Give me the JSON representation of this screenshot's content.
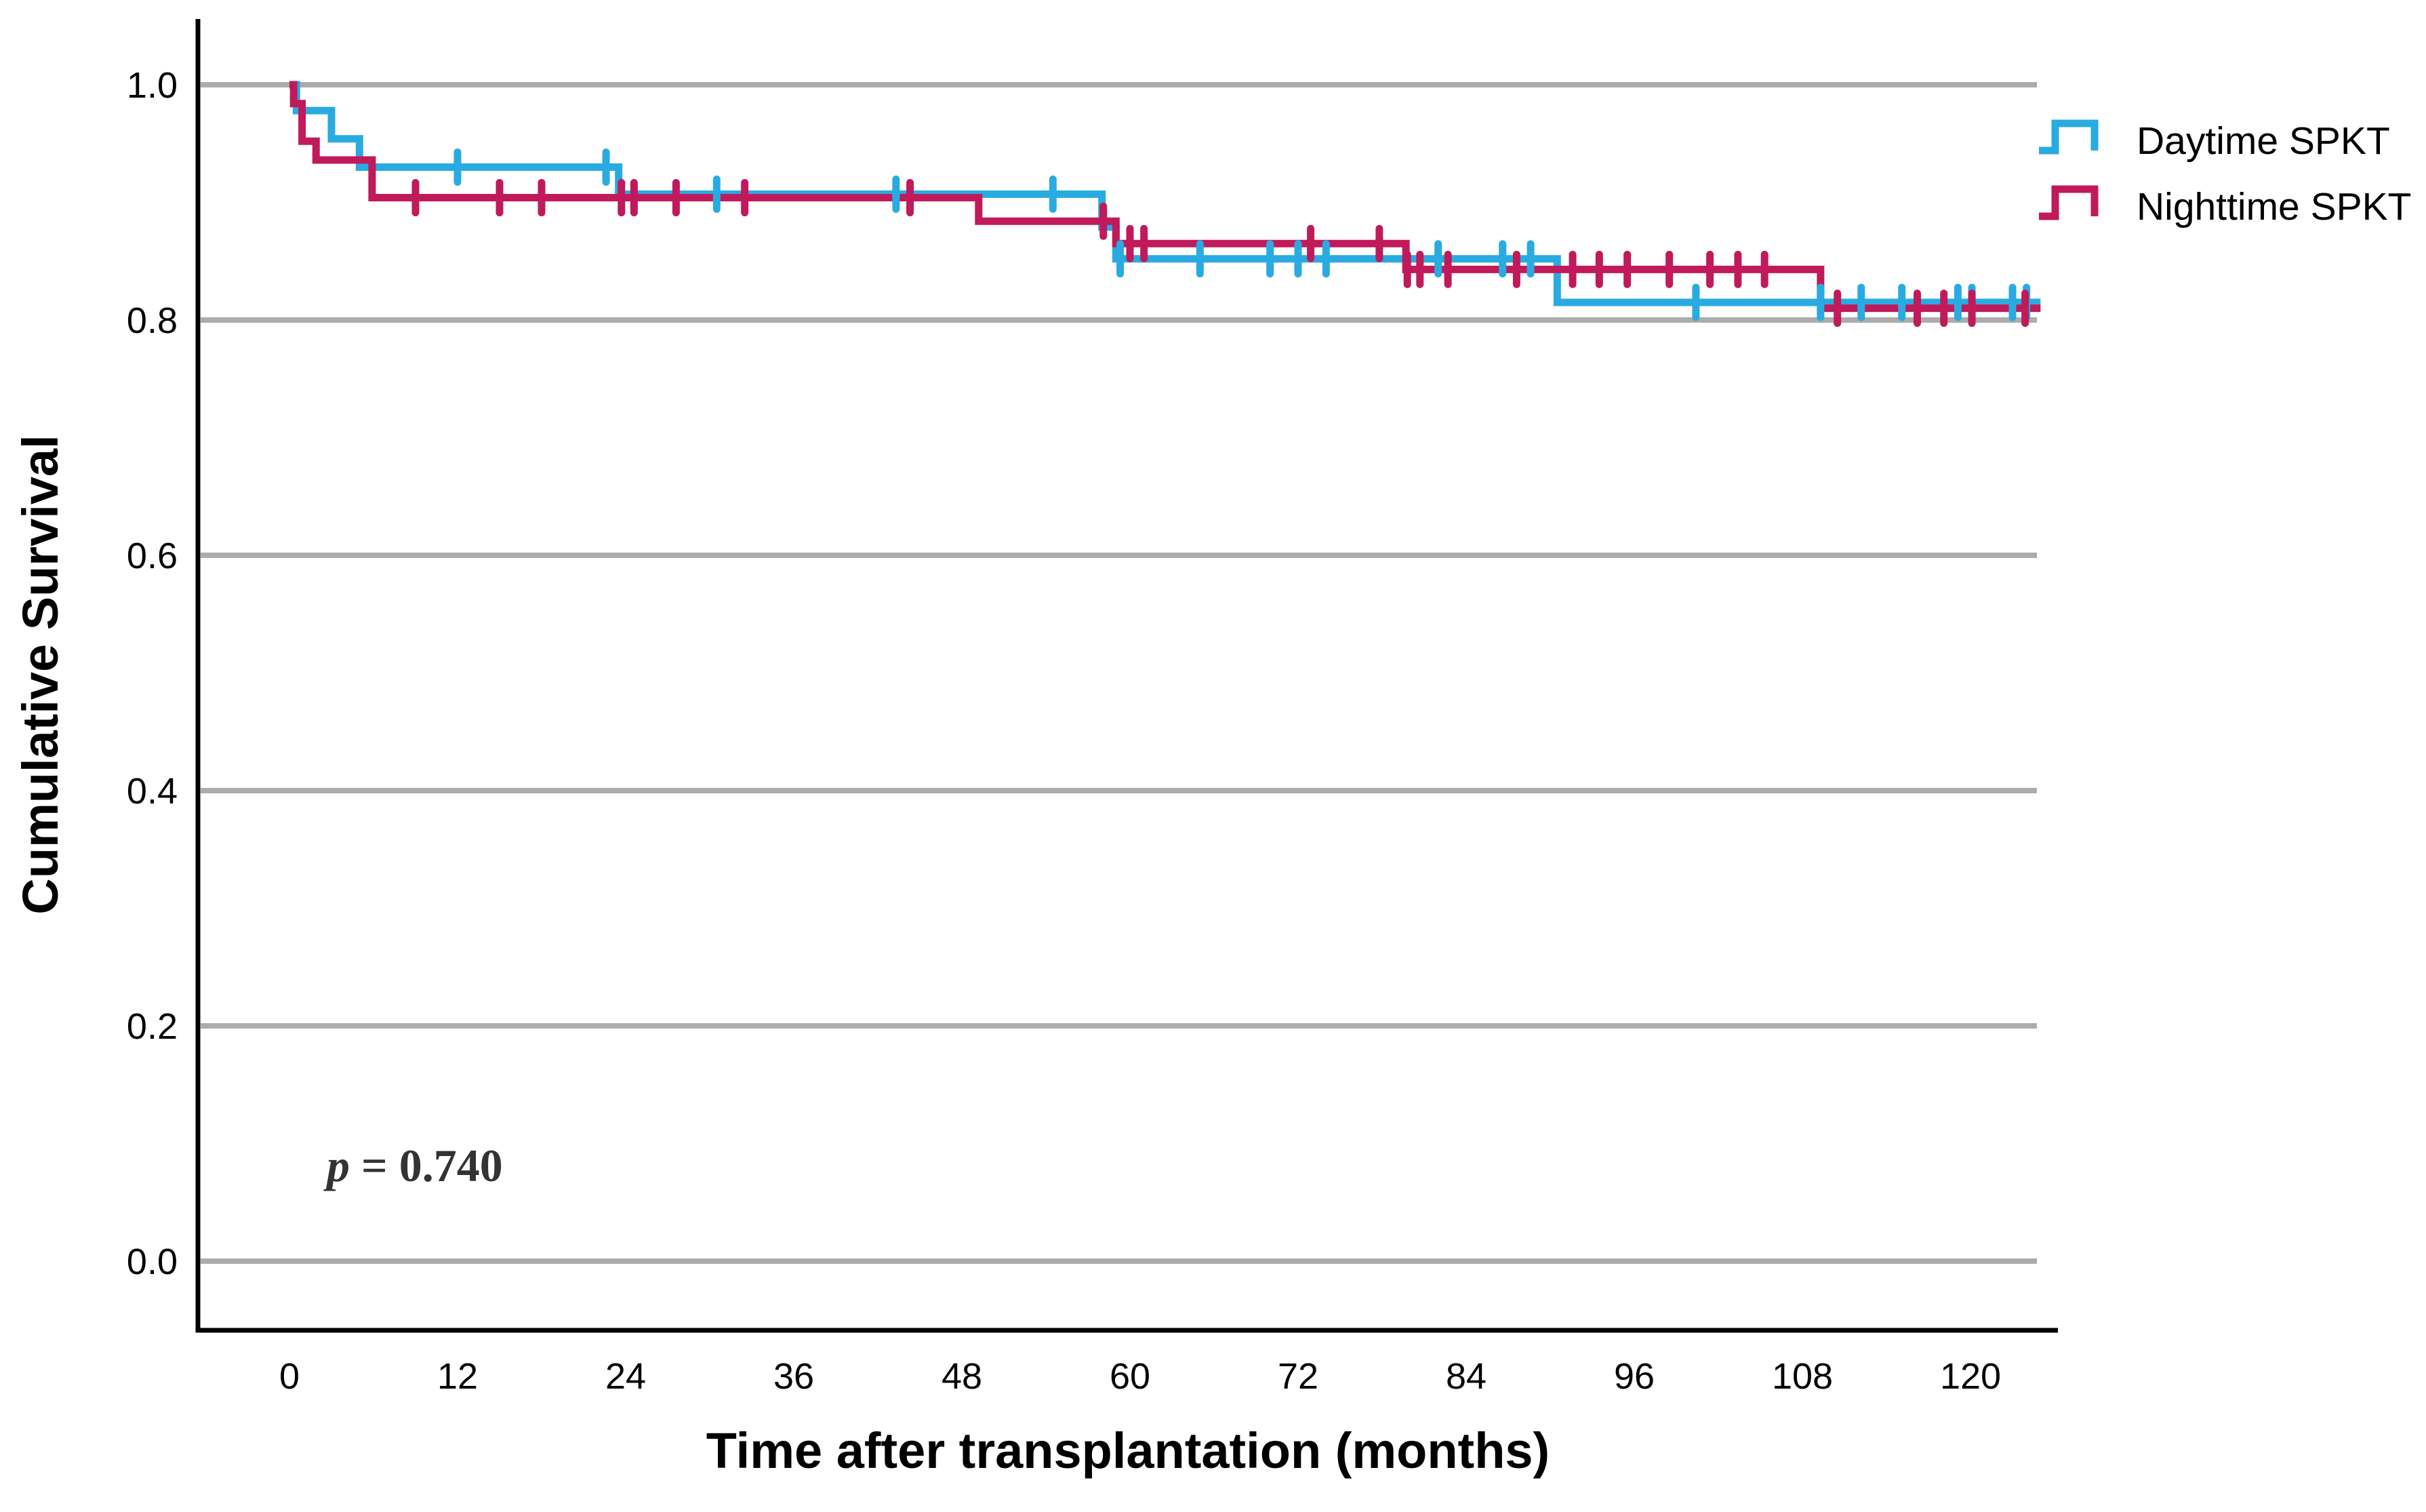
{
  "chart_data": {
    "type": "line",
    "subtype": "kaplan-meier-step",
    "xlabel": "Time after transplantation (months)",
    "ylabel": "Cumulative Survival",
    "x_ticks": [
      0,
      12,
      24,
      36,
      48,
      60,
      72,
      84,
      96,
      108,
      120
    ],
    "x_tick_labels": [
      "0",
      "12",
      "24",
      "36",
      "48",
      "60",
      "72",
      "84",
      "96",
      "108",
      "120"
    ],
    "y_tick_values": [
      1.0,
      0.8,
      0.6,
      0.4,
      0.2,
      0.0
    ],
    "y_tick_labels": [
      "1.0",
      "0.8",
      "0.6",
      "0.4",
      "0.2",
      "0.0"
    ],
    "xlim": [
      0,
      126
    ],
    "ylim": [
      0.0,
      1.0
    ],
    "grid": "horizontal",
    "legend_position": "top-right",
    "annotation": {
      "symbol": "p",
      "value": " = 0.740"
    },
    "colors": {
      "daytime": "#29ABE2",
      "nighttime": "#C01A5B",
      "gridline": "#ACACAC",
      "axis": "#000000"
    },
    "series": [
      {
        "name": "Daytime SPKT",
        "color": "#29ABE2",
        "steps": [
          [
            0,
            1.0
          ],
          [
            0.5,
            0.978
          ],
          [
            3,
            0.954
          ],
          [
            5,
            0.93
          ],
          [
            23.5,
            0.907
          ],
          [
            58,
            0.879
          ],
          [
            59,
            0.852
          ],
          [
            90.5,
            0.815
          ]
        ],
        "end_time": 125,
        "censors": [
          [
            12,
            0.93
          ],
          [
            22.6,
            0.93
          ],
          [
            30.5,
            0.907
          ],
          [
            43.3,
            0.907
          ],
          [
            54.5,
            0.907
          ],
          [
            59.3,
            0.852
          ],
          [
            65,
            0.852
          ],
          [
            70,
            0.852
          ],
          [
            72,
            0.852
          ],
          [
            74,
            0.852
          ],
          [
            82,
            0.852
          ],
          [
            86.6,
            0.852
          ],
          [
            88.6,
            0.852
          ],
          [
            100.4,
            0.815
          ],
          [
            109.3,
            0.815
          ],
          [
            112.2,
            0.815
          ],
          [
            115.1,
            0.815
          ],
          [
            119.1,
            0.815
          ],
          [
            120.1,
            0.815
          ],
          [
            123,
            0.815
          ],
          [
            124,
            0.815
          ]
        ]
      },
      {
        "name": "Nighttime SPKT",
        "color": "#C01A5B",
        "steps": [
          [
            0,
            1.0
          ],
          [
            0.3,
            0.984
          ],
          [
            0.9,
            0.952
          ],
          [
            1.9,
            0.936
          ],
          [
            5.9,
            0.904
          ],
          [
            49.2,
            0.884
          ],
          [
            59,
            0.865
          ],
          [
            79.7,
            0.843
          ],
          [
            109.3,
            0.81
          ]
        ],
        "end_time": 125,
        "censors": [
          [
            9,
            0.904
          ],
          [
            15,
            0.904
          ],
          [
            18,
            0.904
          ],
          [
            23.7,
            0.904
          ],
          [
            24.6,
            0.904
          ],
          [
            27.6,
            0.904
          ],
          [
            32.5,
            0.904
          ],
          [
            44.3,
            0.904
          ],
          [
            58.1,
            0.884
          ],
          [
            60,
            0.865
          ],
          [
            61,
            0.865
          ],
          [
            72.9,
            0.865
          ],
          [
            77.8,
            0.865
          ],
          [
            79.8,
            0.843
          ],
          [
            80.7,
            0.843
          ],
          [
            82.7,
            0.843
          ],
          [
            87.6,
            0.843
          ],
          [
            91.6,
            0.843
          ],
          [
            93.5,
            0.843
          ],
          [
            95.5,
            0.843
          ],
          [
            98.5,
            0.843
          ],
          [
            101.4,
            0.843
          ],
          [
            103.4,
            0.843
          ],
          [
            105.3,
            0.843
          ],
          [
            110.5,
            0.81
          ],
          [
            116.2,
            0.81
          ],
          [
            118.1,
            0.81
          ],
          [
            120.1,
            0.81
          ],
          [
            123.9,
            0.81
          ]
        ]
      }
    ],
    "legend": [
      {
        "label": "Daytime SPKT",
        "color": "#29ABE2"
      },
      {
        "label": "Nighttime SPKT",
        "color": "#C01A5B"
      }
    ]
  }
}
